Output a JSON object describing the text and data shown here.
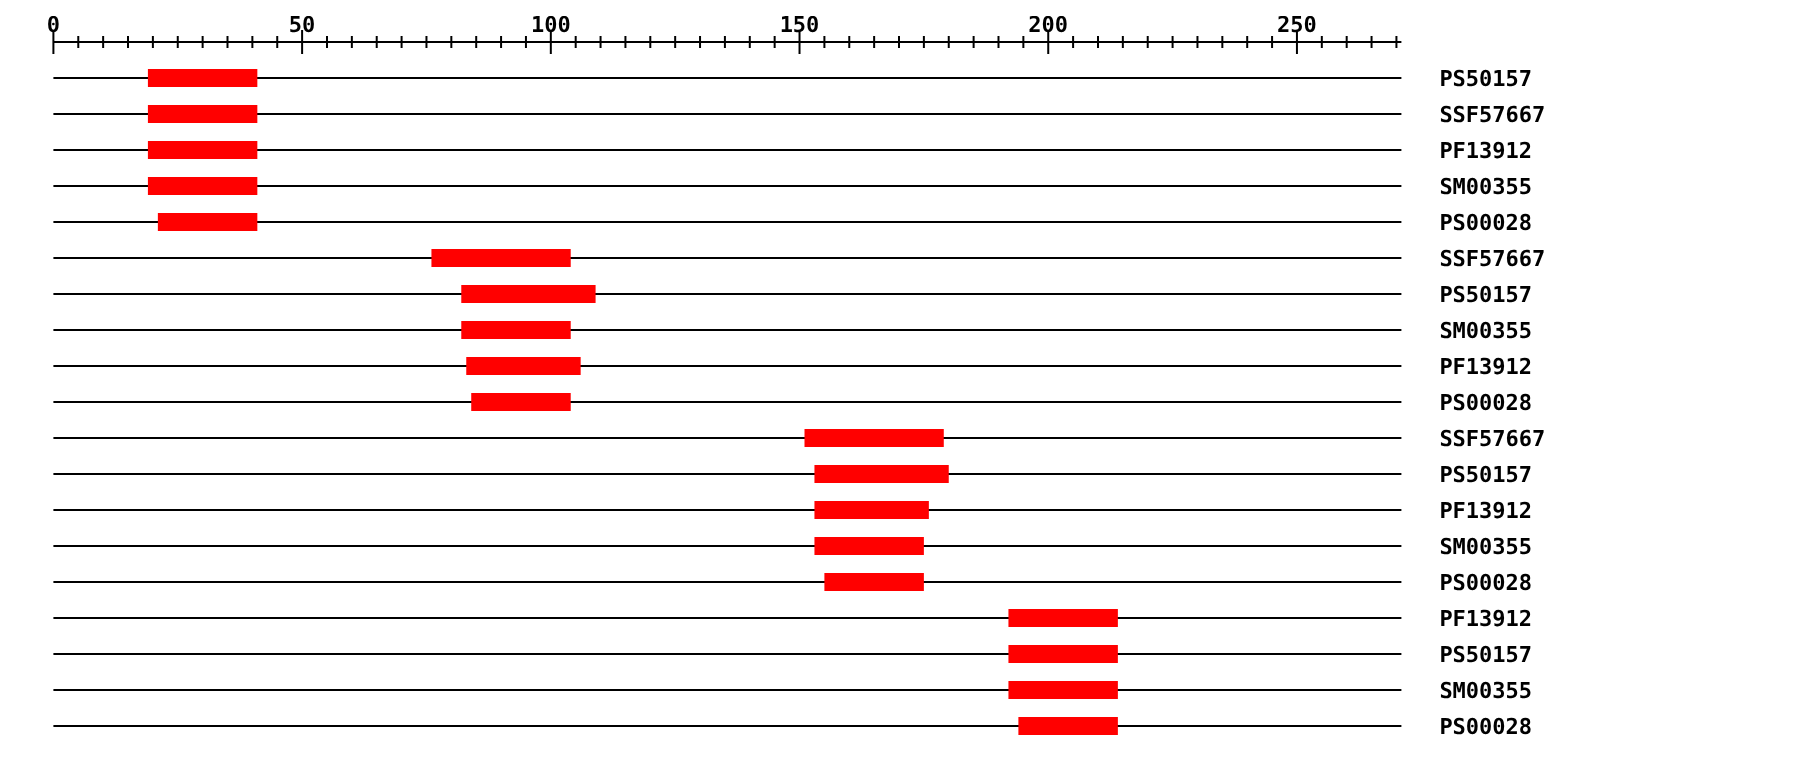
{
  "chart_data": {
    "type": "bar",
    "orientation": "horizontal",
    "categories": [
      "PS50157",
      "SSF57667",
      "PF13912",
      "SM00355",
      "PS00028",
      "SSF57667",
      "PS50157",
      "SM00355",
      "PF13912",
      "PS00028",
      "SSF57667",
      "PS50157",
      "PF13912",
      "SM00355",
      "PS00028",
      "PF13912",
      "PS50157",
      "SM00355",
      "PS00028"
    ],
    "base": [
      19,
      19,
      19,
      19,
      21,
      76,
      82,
      82,
      83,
      84,
      151,
      153,
      153,
      153,
      155,
      192,
      192,
      192,
      194
    ],
    "values": [
      22,
      22,
      22,
      22,
      20,
      28,
      27,
      22,
      23,
      20,
      28,
      27,
      23,
      22,
      20,
      22,
      22,
      22,
      20
    ],
    "color": "#ff0000",
    "xlim": [
      0,
      271
    ],
    "xticks": [
      0,
      {
        "value": 5,
        "label": null
      },
      {
        "value": 10,
        "label": null
      },
      {
        "value": 15,
        "label": null
      },
      {
        "value": 20,
        "label": null
      },
      {
        "value": 25,
        "label": null
      },
      {
        "value": 30,
        "label": null
      },
      {
        "value": 35,
        "label": null
      },
      {
        "value": 40,
        "label": null
      },
      {
        "value": 45,
        "label": null
      },
      50,
      {
        "value": 55,
        "label": null
      },
      {
        "value": 60,
        "label": null
      },
      {
        "value": 65,
        "label": null
      },
      {
        "value": 70,
        "label": null
      },
      {
        "value": 75,
        "label": null
      },
      {
        "value": 80,
        "label": null
      },
      {
        "value": 85,
        "label": null
      },
      {
        "value": 90,
        "label": null
      },
      {
        "value": 95,
        "label": null
      },
      100,
      {
        "value": 105,
        "label": null
      },
      {
        "value": 110,
        "label": null
      },
      {
        "value": 115,
        "label": null
      },
      {
        "value": 120,
        "label": null
      },
      {
        "value": 125,
        "label": null
      },
      {
        "value": 130,
        "label": null
      },
      {
        "value": 135,
        "label": null
      },
      {
        "value": 140,
        "label": null
      },
      {
        "value": 145,
        "label": null
      },
      150,
      {
        "value": 155,
        "label": null
      },
      {
        "value": 160,
        "label": null
      },
      {
        "value": 165,
        "label": null
      },
      {
        "value": 170,
        "label": null
      },
      {
        "value": 175,
        "label": null
      },
      {
        "value": 180,
        "label": null
      },
      {
        "value": 185,
        "label": null
      },
      {
        "value": 190,
        "label": null
      },
      {
        "value": 195,
        "label": null
      },
      200,
      {
        "value": 205,
        "label": null
      },
      {
        "value": 210,
        "label": null
      },
      {
        "value": 215,
        "label": null
      },
      {
        "value": 220,
        "label": null
      },
      {
        "value": 225,
        "label": null
      },
      {
        "value": 230,
        "label": null
      },
      {
        "value": 235,
        "label": null
      },
      {
        "value": 240,
        "label": null
      },
      {
        "value": 245,
        "label": null
      },
      250,
      {
        "value": 255,
        "label": null
      },
      {
        "value": 260,
        "label": null
      },
      {
        "value": 265,
        "label": null
      },
      {
        "value": 270,
        "label": null
      }
    ],
    "grid": "y"
  }
}
